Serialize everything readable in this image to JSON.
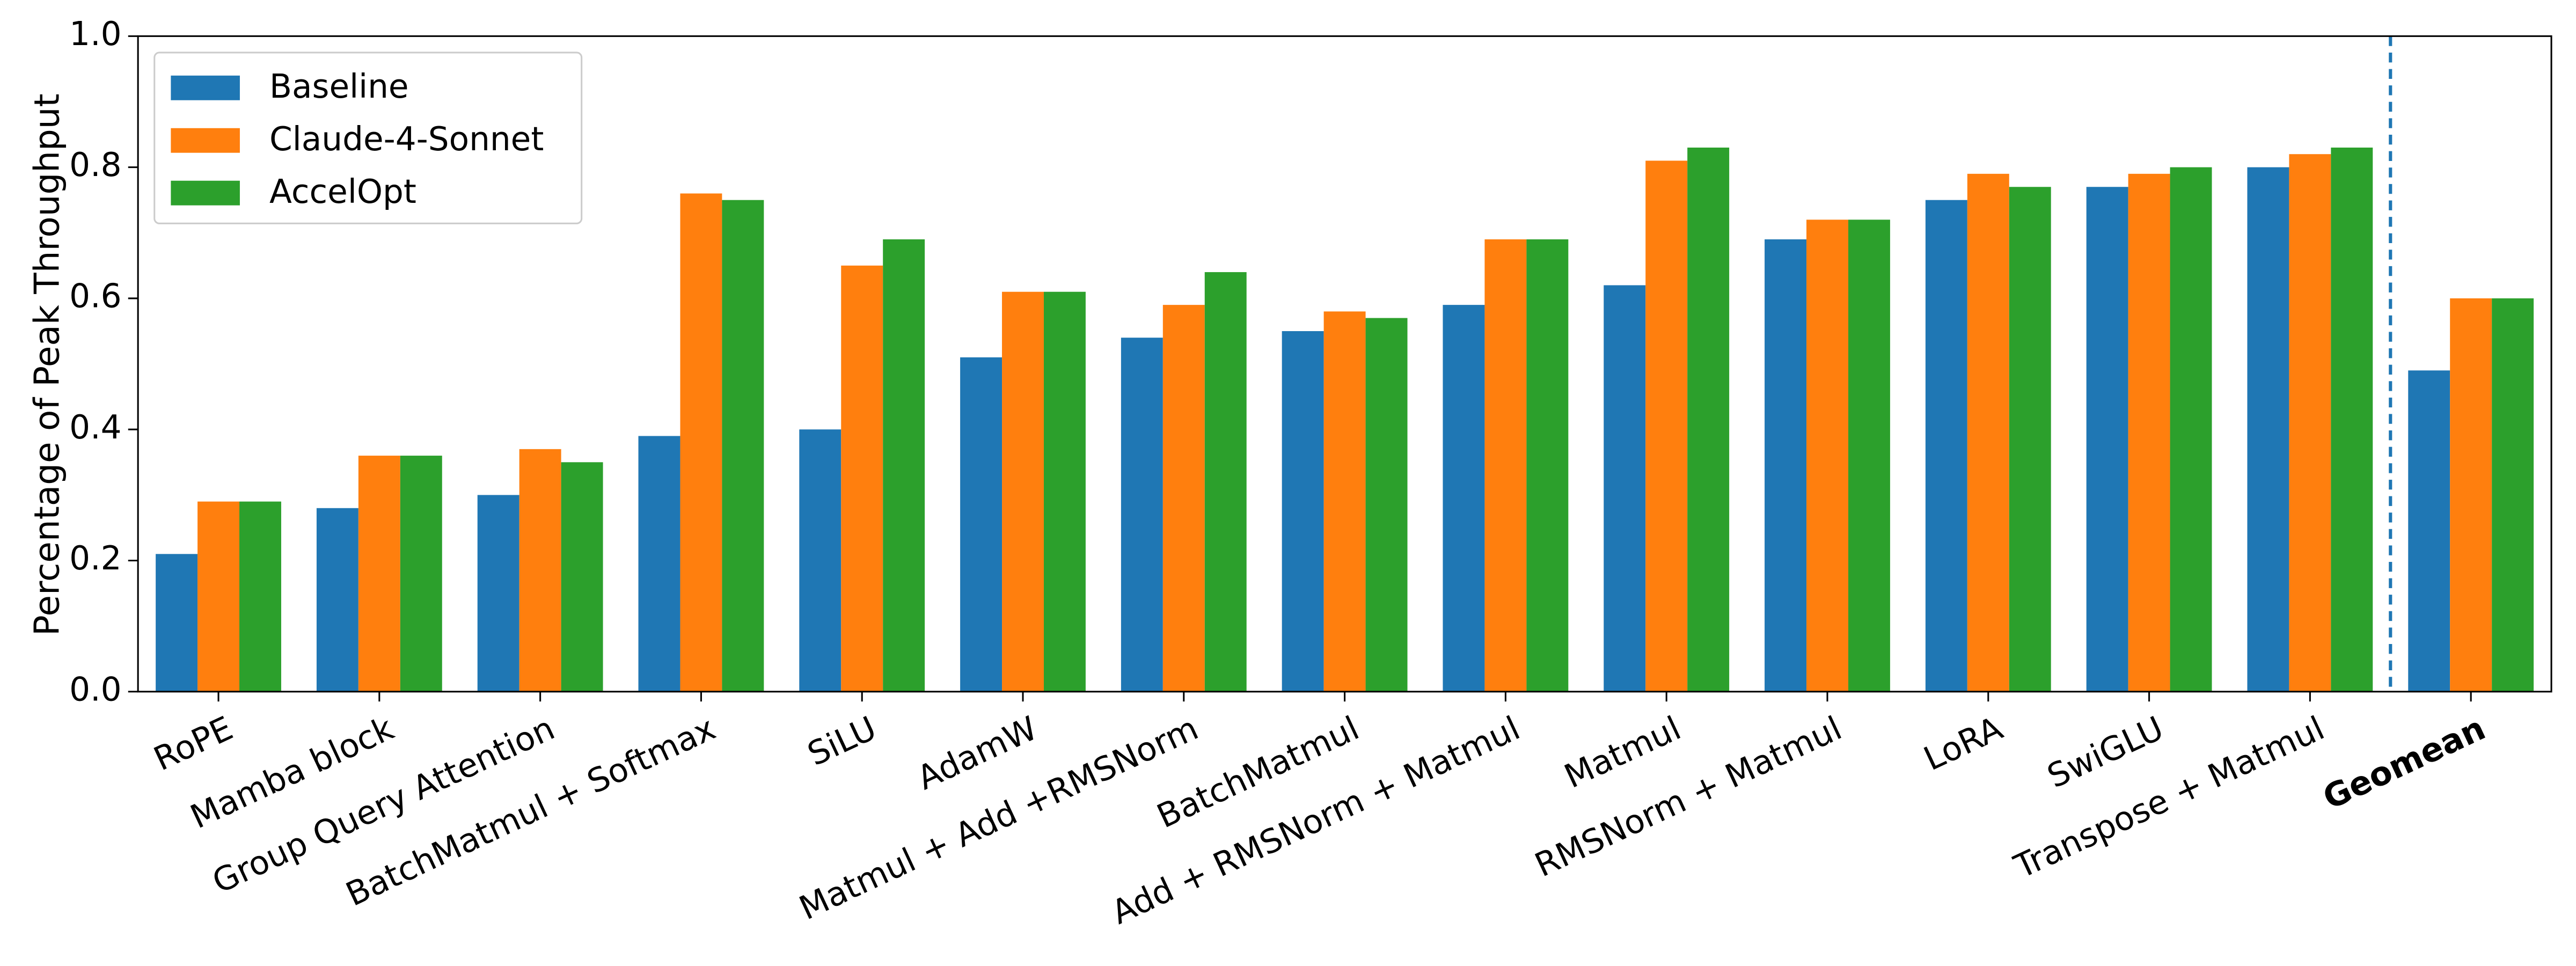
{
  "chart_data": {
    "type": "grouped_bar",
    "y_label": "Percentage of Peak Throughput",
    "categories": [
      "RoPE",
      "Mamba block",
      "Group Query Attention",
      "BatchMatmul + Softmax",
      "SiLU",
      "AdamW",
      "Matmul + Add +RMSNorm",
      "BatchMatmul",
      "Add + RMSNorm + Matmul",
      "Matmul",
      "RMSNorm + Matmul",
      "LoRA",
      "SwiGLU",
      "Transpose + Matmul",
      "Geomean"
    ],
    "series": [
      {
        "name": "Baseline",
        "color": "#1f77b4",
        "values": [
          0.21,
          0.28,
          0.3,
          0.39,
          0.4,
          0.51,
          0.54,
          0.55,
          0.59,
          0.62,
          0.69,
          0.75,
          0.77,
          0.8,
          0.49
        ]
      },
      {
        "name": "Claude-4-Sonnet",
        "color": "#ff7f0e",
        "values": [
          0.29,
          0.36,
          0.37,
          0.76,
          0.65,
          0.61,
          0.59,
          0.58,
          0.69,
          0.81,
          0.72,
          0.79,
          0.79,
          0.82,
          0.6
        ]
      },
      {
        "name": "AccelOpt",
        "color": "#2ca02c",
        "values": [
          0.29,
          0.36,
          0.35,
          0.75,
          0.69,
          0.61,
          0.64,
          0.57,
          0.69,
          0.83,
          0.72,
          0.77,
          0.8,
          0.83,
          0.6
        ]
      }
    ],
    "ylim": [
      0,
      1
    ],
    "yticks": [
      {
        "value": 0,
        "label": "0.0"
      },
      {
        "value": 0.2,
        "label": "0.2"
      },
      {
        "value": 0.4,
        "label": "0.4"
      },
      {
        "value": 0.6,
        "label": "0.6"
      },
      {
        "value": 0.8,
        "label": "0.8"
      },
      {
        "value": 1,
        "label": "1.0"
      }
    ],
    "legend": "upper left",
    "summary_category_separated": true,
    "separator_color": "#1f77b4"
  }
}
